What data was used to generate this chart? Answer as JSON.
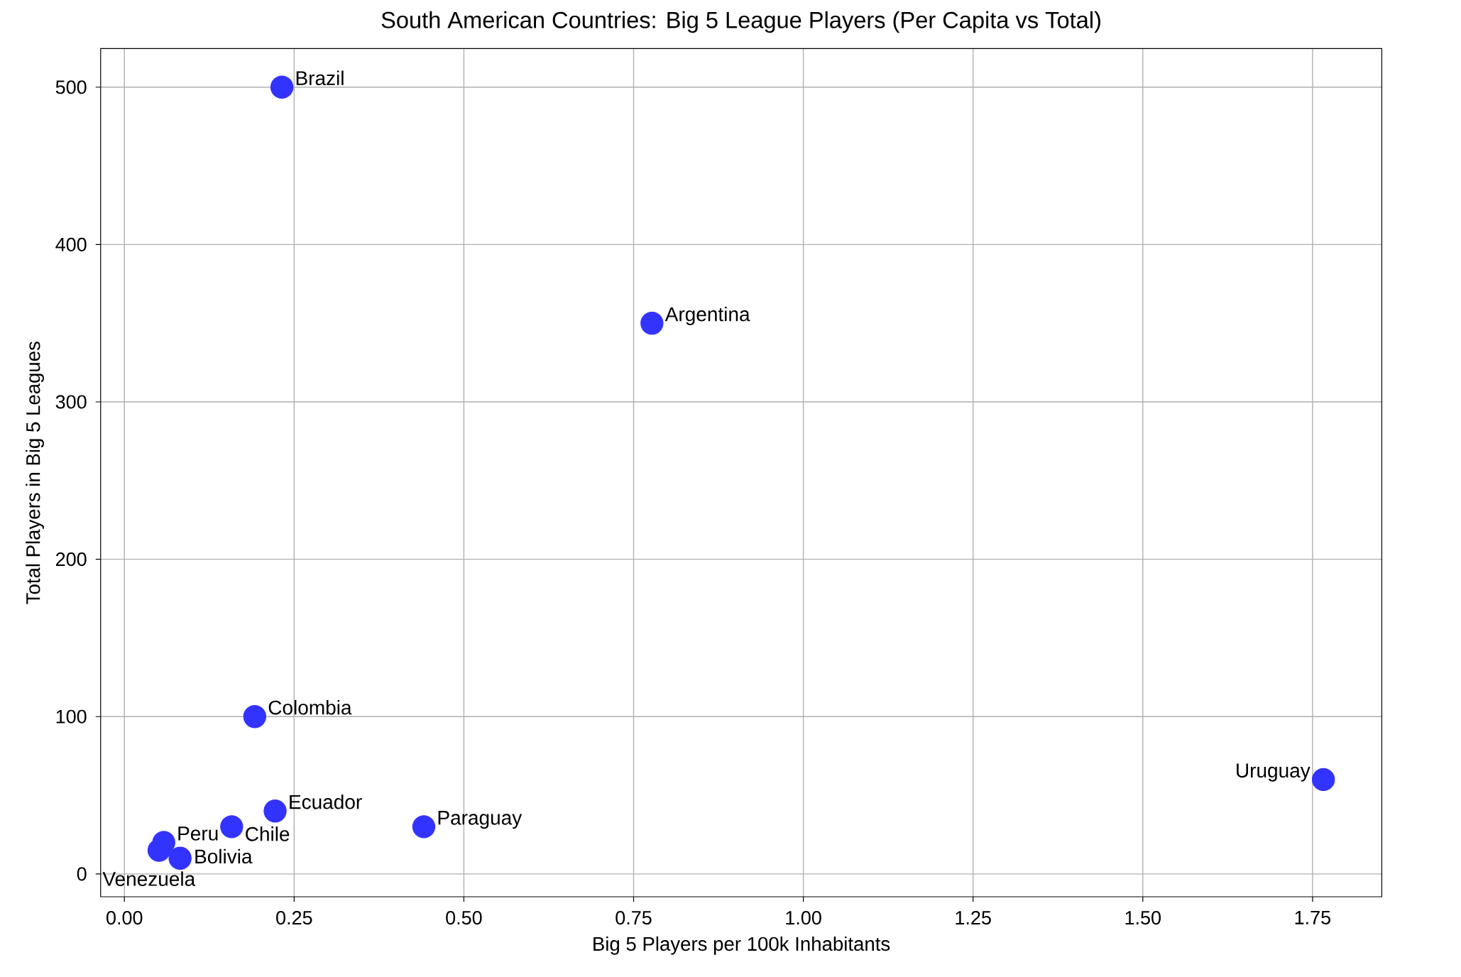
{
  "chart_data": {
    "type": "scatter",
    "title": "South American Countries: Big 5 League Players (Per Capita vs Total)",
    "xlabel": "Big 5 Players per 100k Inhabitants",
    "ylabel": "Total Players in Big 5 Leagues",
    "x": [
      0.232,
      0.777,
      0.192,
      0.158,
      0.058,
      0.051,
      0.222,
      0.082,
      0.441,
      1.766
    ],
    "values": [
      500,
      350,
      100,
      30,
      20,
      15,
      40,
      10,
      30,
      60
    ],
    "color": "#3333ff",
    "marker": "circle",
    "grid": true,
    "xlim": [
      -0.035,
      1.852
    ],
    "ylim": [
      -14.5,
      524.5
    ],
    "xticks": [
      {
        "value": 0,
        "label": "0.00"
      },
      0.25,
      {
        "value": 0.5,
        "label": "0.50"
      },
      0.75,
      {
        "value": 1,
        "label": "1.00"
      },
      1.25,
      {
        "value": 1.5,
        "label": "1.50"
      },
      1.75
    ],
    "yticks": [
      0,
      100,
      200,
      300,
      400,
      500
    ],
    "annotations": [
      {
        "text": "Brazil",
        "x": 0.232,
        "y": 500
      },
      {
        "text": "Argentina",
        "x": 0.777,
        "y": 350
      },
      {
        "text": "Colombia",
        "x": 0.192,
        "y": 100
      },
      {
        "text": "Chile",
        "x": 0.158,
        "y": 30
      },
      {
        "text": "Peru",
        "x": 0.058,
        "y": 20
      },
      {
        "text": "Venezuela",
        "x": 0.051,
        "y": 15
      },
      {
        "text": "Ecuador",
        "x": 0.222,
        "y": 40
      },
      {
        "text": "Bolivia",
        "x": 0.082,
        "y": 10
      },
      {
        "text": "Paraguay",
        "x": 0.441,
        "y": 30
      },
      {
        "text": "Uruguay",
        "x": 1.766,
        "y": 60
      }
    ]
  }
}
